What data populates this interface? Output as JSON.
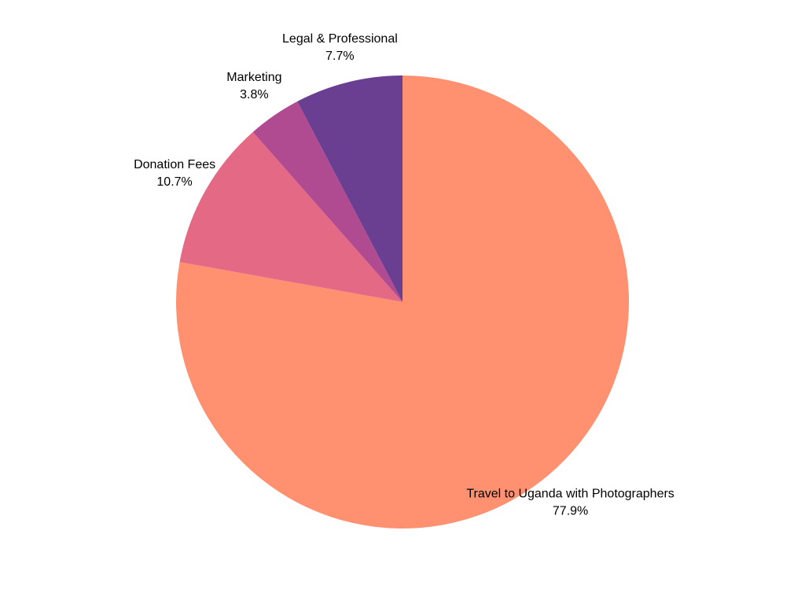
{
  "chart_data": {
    "type": "pie",
    "title": "",
    "start_angle_deg": 0,
    "direction": "clockwise",
    "slices": [
      {
        "label": "Travel to Uganda with Photographers",
        "value": 77.9,
        "percent_label": "77.9%",
        "color": "#FF9171"
      },
      {
        "label": "Donation Fees",
        "value": 10.7,
        "percent_label": "10.7%",
        "color": "#E46985"
      },
      {
        "label": "Marketing",
        "value": 3.8,
        "percent_label": "3.8%",
        "color": "#B04B92"
      },
      {
        "label": "Legal & Professional",
        "value": 7.7,
        "percent_label": "7.7%",
        "color": "#6A3F91"
      }
    ]
  }
}
